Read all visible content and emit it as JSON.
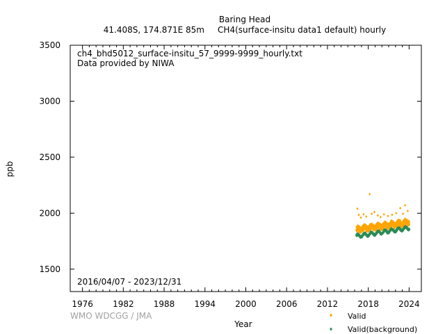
{
  "chart_data": {
    "type": "scatter",
    "title": "Baring Head",
    "subtitle": "41.408S, 174.871E 85m     CH4(surface-insitu data1 default) hourly",
    "annotation_file": "ch4_bhd5012_surface-insitu_57_9999-9999_hourly.txt",
    "annotation_provider": "Data provided by NIWA",
    "date_range": "2016/04/07 - 2023/12/31",
    "watermark": "WMO WDCGG / JMA",
    "xlabel": "Year",
    "ylabel": "ppb",
    "xlim": [
      1974.2,
      2025.8
    ],
    "ylim": [
      1300,
      3500
    ],
    "x_ticks": [
      1976,
      1982,
      1988,
      1994,
      2000,
      2006,
      2012,
      2018,
      2024
    ],
    "y_ticks": [
      1500,
      2000,
      2500,
      3000,
      3500
    ],
    "grid": false,
    "legend_position": "bottom-right",
    "series": [
      {
        "name": "Valid",
        "color": "#ffa500",
        "marker": "diamond",
        "band": {
          "x_start": 2016.27,
          "x_end": 2024.0,
          "base": 1848,
          "trend_per_year": 8.5,
          "seasonal_amp": 12,
          "spread_low": 35,
          "spread_high": 60
        },
        "spikes": [
          [
            2016.4,
            2040
          ],
          [
            2016.6,
            1985
          ],
          [
            2016.9,
            1960
          ],
          [
            2017.3,
            1990
          ],
          [
            2017.7,
            1970
          ],
          [
            2018.2,
            2170
          ],
          [
            2018.5,
            1995
          ],
          [
            2018.9,
            2010
          ],
          [
            2019.4,
            1980
          ],
          [
            2019.8,
            1965
          ],
          [
            2020.3,
            1990
          ],
          [
            2020.9,
            1975
          ],
          [
            2021.5,
            1985
          ],
          [
            2022.1,
            2000
          ],
          [
            2022.7,
            2045
          ],
          [
            2023.1,
            1995
          ],
          [
            2023.4,
            2070
          ],
          [
            2023.8,
            2020
          ]
        ]
      },
      {
        "name": "Valid(background)",
        "color": "#2e8b57",
        "marker": "diamond",
        "band": {
          "x_start": 2016.27,
          "x_end": 2024.0,
          "base": 1795,
          "trend_per_year": 9.5,
          "seasonal_amp": 14,
          "spread_low": 14,
          "spread_high": 14
        }
      }
    ]
  }
}
